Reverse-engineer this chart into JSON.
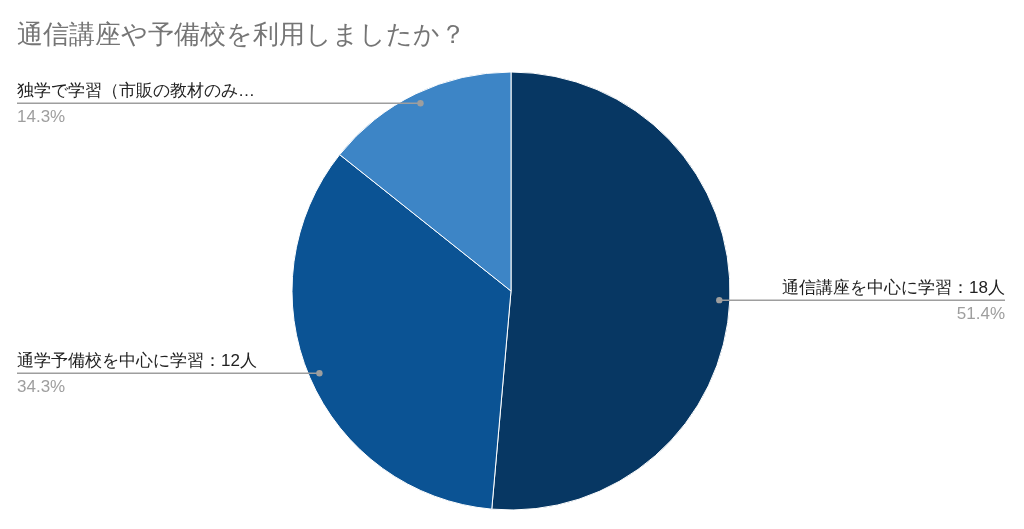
{
  "chart_data": {
    "type": "pie",
    "title": "通信講座や予備校を利用しましたか？",
    "categories": [
      "通信講座を中心に学習：18人",
      "通学予備校を中心に学習：12人",
      "独学で学習（市販の教材のみ…"
    ],
    "values": [
      51.4,
      34.3,
      14.3
    ],
    "value_labels": [
      "51.4%",
      "34.3%",
      "14.3%"
    ],
    "colors": [
      "#073763",
      "#0b5394",
      "#3d85c6"
    ]
  }
}
